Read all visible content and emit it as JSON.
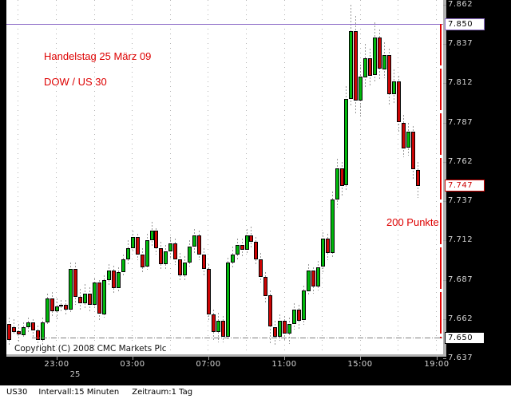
{
  "annotations": {
    "trading_day": "Handelstag 25 März 09",
    "instrument": "DOW / US 30",
    "range_label": "200 Punkte"
  },
  "copyright": "Copyright (C) 2008 CMC Markets Plc",
  "status_bar": {
    "symbol": "US30",
    "interval": "Intervall:15 Minuten",
    "period": "Zeitraum:1 Tag"
  },
  "colors": {
    "up": "#00b80c",
    "down": "#cc0404",
    "wick": "#9a9a9a",
    "grid": "#b4b4b4",
    "annotation_red": "#dd0000",
    "purple_line": "#8e6ec8",
    "range_line_red": "#e00000",
    "gray_level_line": "#808080",
    "axis_text": "#d4d4d4",
    "background": "#000000",
    "chart_bg": "#ffffff"
  },
  "chart_data": {
    "type": "candlestick",
    "title": "DOW / US 30 — Handelstag 25 März 09",
    "symbol": "US30",
    "interval_minutes": 15,
    "start_time": "20:30",
    "y_range": [
      7638,
      7865
    ],
    "grid": true,
    "y_ticks": [
      {
        "label": "7.862",
        "value": 7862,
        "grid": false
      },
      {
        "label": "7.837",
        "value": 7837,
        "grid": true
      },
      {
        "label": "7.812",
        "value": 7812,
        "grid": true
      },
      {
        "label": "7.787",
        "value": 7787,
        "grid": true
      },
      {
        "label": "7.762",
        "value": 7762,
        "grid": true
      },
      {
        "label": "7.737",
        "value": 7737,
        "grid": true
      },
      {
        "label": "7.712",
        "value": 7712,
        "grid": true
      },
      {
        "label": "7.687",
        "value": 7687,
        "grid": true
      },
      {
        "label": "7.662",
        "value": 7662,
        "grid": true
      },
      {
        "label": "7.637",
        "value": 7637,
        "grid": false
      }
    ],
    "price_markers": [
      {
        "label": "7.850",
        "value": 7850,
        "line": "solid-purple",
        "box": "purple"
      },
      {
        "label": "7.747",
        "value": 7747,
        "line": "none",
        "box": "red"
      },
      {
        "label": "7.650",
        "value": 7650,
        "line": "dashdot-gray",
        "box": "black"
      }
    ],
    "range_line": {
      "from": 7850,
      "to": 7650,
      "points": 200
    },
    "x_ticks": [
      {
        "label": "23:00",
        "index": 10
      },
      {
        "label": "03:00",
        "index": 26
      },
      {
        "label": "07:00",
        "index": 42
      },
      {
        "label": "11:00",
        "index": 58
      },
      {
        "label": "15:00",
        "index": 74
      },
      {
        "label": "19:00",
        "index": 90
      }
    ],
    "date_tick": {
      "label": "25",
      "index": 14
    },
    "grid_x_indices": [
      2,
      10,
      18,
      26,
      34,
      42,
      50,
      58,
      66,
      74,
      82,
      90
    ],
    "candles": [
      [
        7659,
        7663,
        7645,
        7649
      ],
      [
        7657,
        7662,
        7652,
        7654
      ],
      [
        7654,
        7659,
        7648,
        7652
      ],
      [
        7652,
        7660,
        7650,
        7657
      ],
      [
        7657,
        7663,
        7653,
        7660
      ],
      [
        7660,
        7662,
        7650,
        7655
      ],
      [
        7655,
        7658,
        7644,
        7649
      ],
      [
        7649,
        7663,
        7645,
        7660
      ],
      [
        7660,
        7678,
        7658,
        7675
      ],
      [
        7675,
        7679,
        7663,
        7667
      ],
      [
        7667,
        7675,
        7662,
        7670
      ],
      [
        7670,
        7674,
        7666,
        7671
      ],
      [
        7671,
        7674,
        7665,
        7668
      ],
      [
        7668,
        7698,
        7666,
        7694
      ],
      [
        7694,
        7698,
        7671,
        7676
      ],
      [
        7676,
        7681,
        7667,
        7672
      ],
      [
        7672,
        7684,
        7669,
        7678
      ],
      [
        7678,
        7682,
        7667,
        7671
      ],
      [
        7671,
        7688,
        7669,
        7685
      ],
      [
        7685,
        7687,
        7661,
        7665
      ],
      [
        7665,
        7690,
        7663,
        7687
      ],
      [
        7687,
        7697,
        7683,
        7693
      ],
      [
        7693,
        7696,
        7678,
        7682
      ],
      [
        7682,
        7695,
        7680,
        7692
      ],
      [
        7692,
        7703,
        7689,
        7700
      ],
      [
        7700,
        7712,
        7696,
        7707
      ],
      [
        7707,
        7718,
        7704,
        7714
      ],
      [
        7714,
        7716,
        7699,
        7703
      ],
      [
        7703,
        7707,
        7691,
        7695
      ],
      [
        7695,
        7716,
        7693,
        7712
      ],
      [
        7712,
        7724,
        7708,
        7718
      ],
      [
        7718,
        7720,
        7703,
        7707
      ],
      [
        7707,
        7711,
        7693,
        7697
      ],
      [
        7697,
        7709,
        7694,
        7705
      ],
      [
        7705,
        7714,
        7701,
        7710
      ],
      [
        7710,
        7713,
        7696,
        7700
      ],
      [
        7700,
        7704,
        7686,
        7690
      ],
      [
        7690,
        7702,
        7687,
        7698
      ],
      [
        7698,
        7712,
        7695,
        7708
      ],
      [
        7708,
        7719,
        7704,
        7715
      ],
      [
        7715,
        7718,
        7699,
        7703
      ],
      [
        7703,
        7707,
        7689,
        7694
      ],
      [
        7694,
        7697,
        7661,
        7665
      ],
      [
        7665,
        7668,
        7648,
        7654
      ],
      [
        7654,
        7666,
        7647,
        7661
      ],
      [
        7661,
        7664,
        7647,
        7651
      ],
      [
        7651,
        7701,
        7648,
        7698
      ],
      [
        7698,
        7708,
        7694,
        7703
      ],
      [
        7703,
        7713,
        7699,
        7709
      ],
      [
        7709,
        7713,
        7701,
        7706
      ],
      [
        7706,
        7719,
        7703,
        7715
      ],
      [
        7715,
        7721,
        7707,
        7711
      ],
      [
        7711,
        7714,
        7696,
        7700
      ],
      [
        7700,
        7704,
        7685,
        7689
      ],
      [
        7689,
        7692,
        7672,
        7677
      ],
      [
        7677,
        7680,
        7646,
        7657
      ],
      [
        7657,
        7661,
        7645,
        7651
      ],
      [
        7651,
        7665,
        7648,
        7661
      ],
      [
        7661,
        7664,
        7649,
        7653
      ],
      [
        7653,
        7663,
        7646,
        7659
      ],
      [
        7659,
        7672,
        7655,
        7668
      ],
      [
        7668,
        7671,
        7656,
        7661
      ],
      [
        7661,
        7683,
        7658,
        7680
      ],
      [
        7680,
        7697,
        7677,
        7693
      ],
      [
        7693,
        7695,
        7678,
        7683
      ],
      [
        7683,
        7699,
        7680,
        7695
      ],
      [
        7695,
        7717,
        7691,
        7713
      ],
      [
        7713,
        7716,
        7699,
        7704
      ],
      [
        7704,
        7743,
        7701,
        7738
      ],
      [
        7738,
        7764,
        7733,
        7758
      ],
      [
        7758,
        7762,
        7740,
        7747
      ],
      [
        7747,
        7810,
        7743,
        7802
      ],
      [
        7802,
        7862,
        7798,
        7845
      ],
      [
        7845,
        7855,
        7793,
        7801
      ],
      [
        7801,
        7824,
        7791,
        7816
      ],
      [
        7816,
        7837,
        7809,
        7828
      ],
      [
        7828,
        7834,
        7810,
        7817
      ],
      [
        7817,
        7851,
        7813,
        7841
      ],
      [
        7841,
        7846,
        7814,
        7821
      ],
      [
        7821,
        7838,
        7815,
        7830
      ],
      [
        7830,
        7834,
        7798,
        7805
      ],
      [
        7805,
        7821,
        7799,
        7813
      ],
      [
        7813,
        7817,
        7781,
        7787
      ],
      [
        7787,
        7792,
        7765,
        7771
      ],
      [
        7771,
        7787,
        7766,
        7781
      ],
      [
        7781,
        7785,
        7751,
        7757
      ],
      [
        7757,
        7762,
        7739,
        7747
      ]
    ]
  }
}
